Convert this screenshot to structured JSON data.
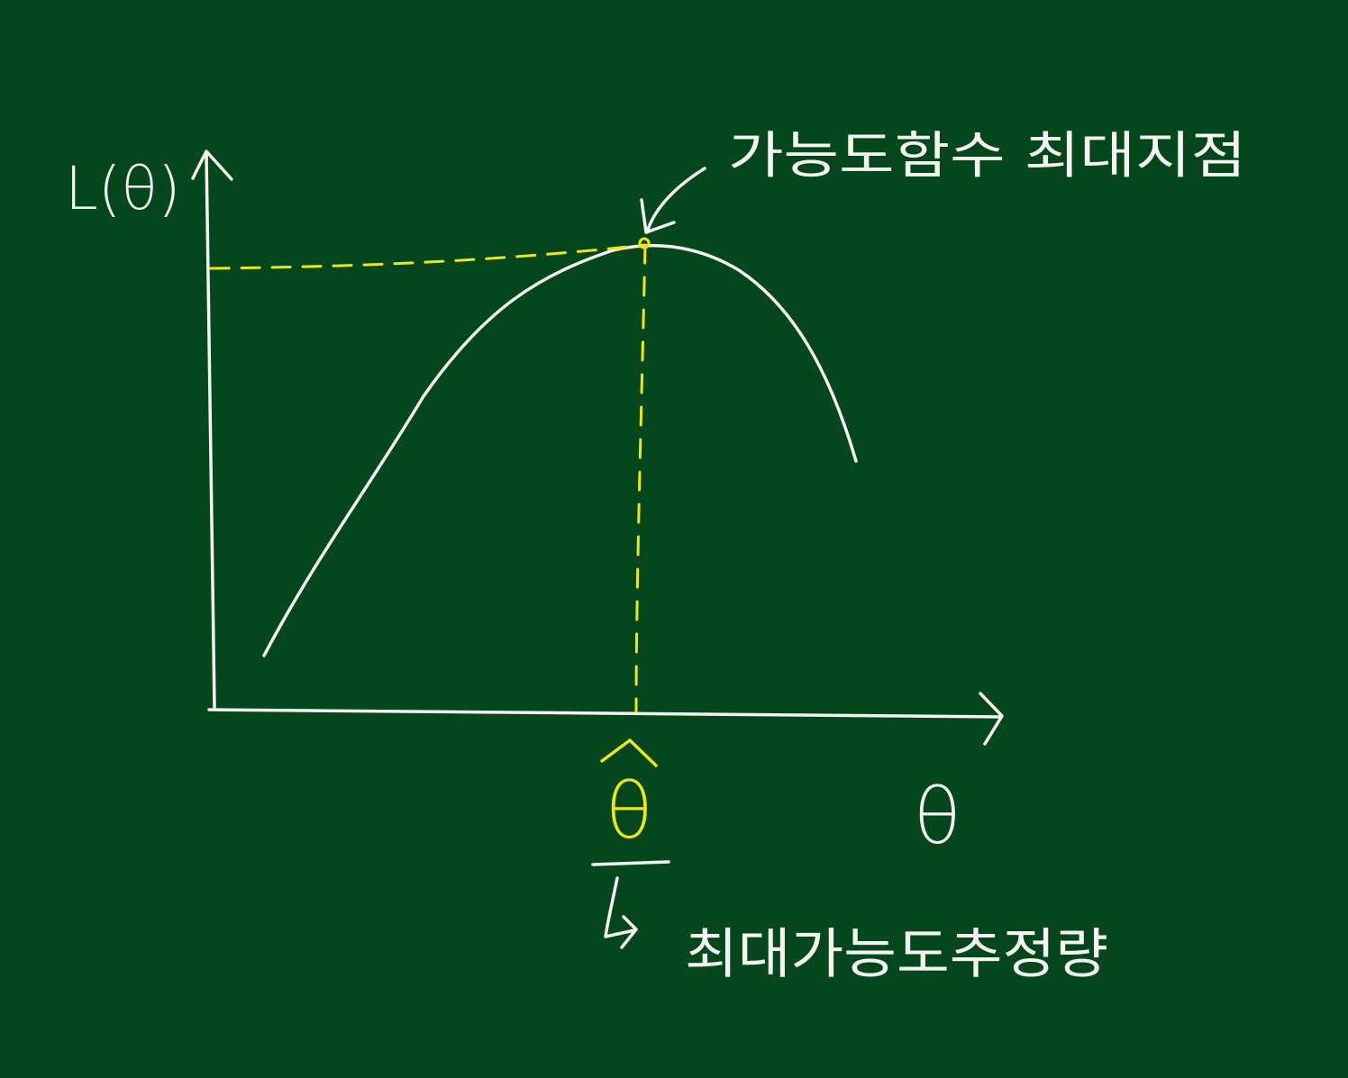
{
  "colors": {
    "background": "#04471c",
    "chalk": "#f4f4f0",
    "highlight": "#f0e612"
  },
  "labels": {
    "y_axis": "L(θ)",
    "x_axis": "θ",
    "peak_annotation": "가능도함수 최대지점",
    "mle_symbol": "θ̂",
    "mle_annotation": "최대가능도추정량"
  }
}
